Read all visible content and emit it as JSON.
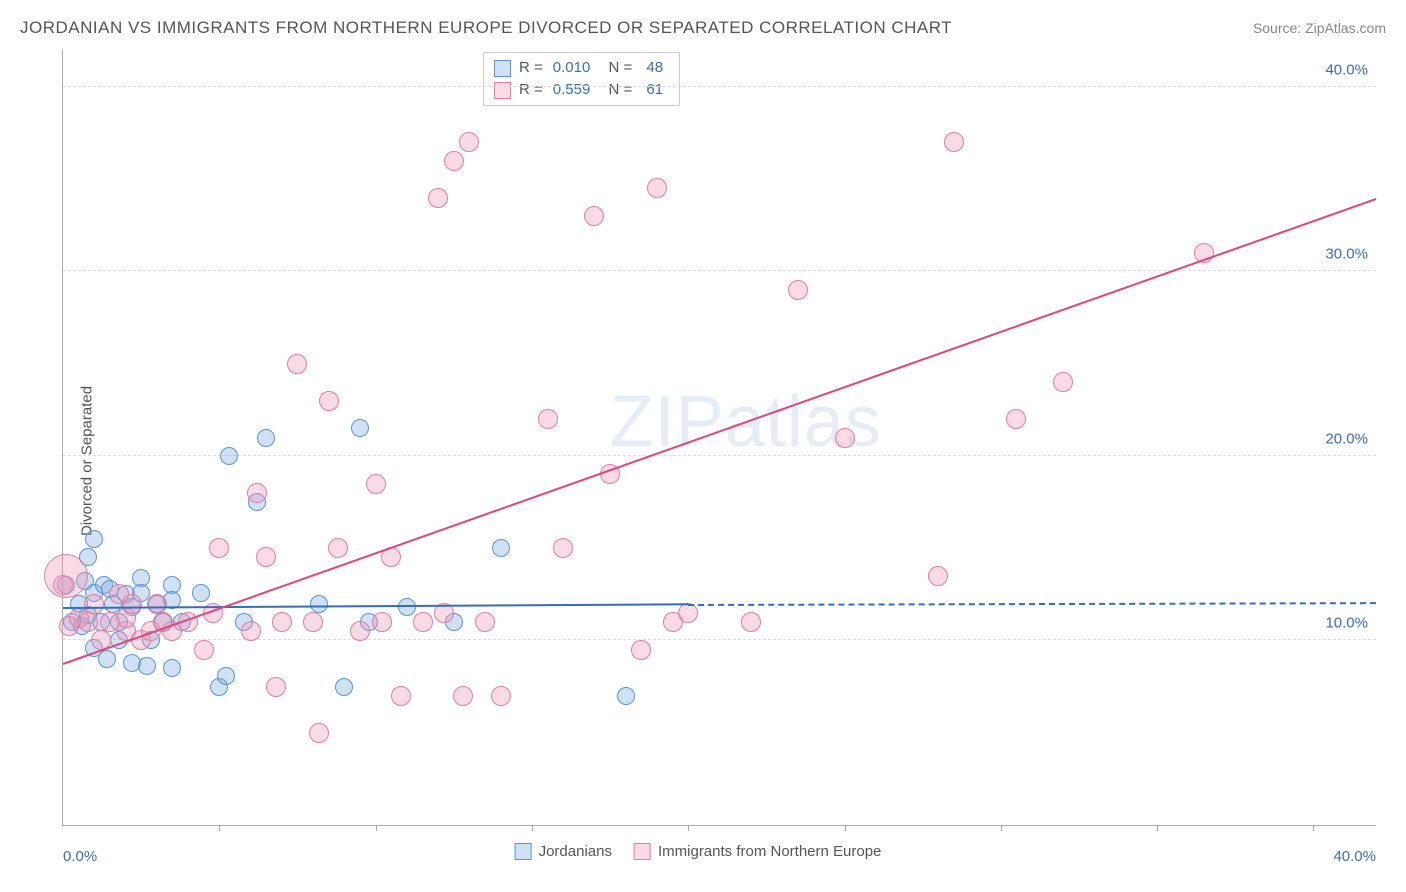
{
  "title": "JORDANIAN VS IMMIGRANTS FROM NORTHERN EUROPE DIVORCED OR SEPARATED CORRELATION CHART",
  "source": "Source: ZipAtlas.com",
  "watermark": "ZIPatlas",
  "ylabel": "Divorced or Separated",
  "chart": {
    "type": "scatter",
    "xlim": [
      0,
      42
    ],
    "ylim": [
      0,
      42
    ],
    "grid_color": "#dddddd",
    "axis_color": "#aaaaaa",
    "y_ticks": [
      10,
      20,
      30,
      40
    ],
    "y_tick_labels": [
      "10.0%",
      "20.0%",
      "30.0%",
      "40.0%"
    ],
    "x_ticks_minor": [
      5,
      10,
      15,
      20,
      25,
      30,
      35,
      40
    ],
    "x_tick_labels": [
      [
        0,
        "0.0%"
      ],
      [
        42,
        "40.0%"
      ]
    ],
    "series": [
      {
        "name": "Jordanians",
        "fill": "rgba(120,170,225,0.35)",
        "stroke": "#5a95d6",
        "marker_r": 9,
        "r_value": "0.010",
        "n_value": "48",
        "trend": {
          "color": "#2f6fc0",
          "x0": 0,
          "y0": 11.8,
          "x1": 20,
          "y1": 12.0,
          "dash_after_x": 20,
          "x2": 42,
          "y2": 12.1
        },
        "points": [
          [
            0.1,
            13.0
          ],
          [
            0.3,
            11.0
          ],
          [
            0.5,
            12.0
          ],
          [
            0.6,
            10.8
          ],
          [
            0.7,
            13.2
          ],
          [
            0.8,
            11.4
          ],
          [
            0.8,
            14.5
          ],
          [
            1.0,
            9.6
          ],
          [
            1.0,
            15.5
          ],
          [
            1.0,
            12.6
          ],
          [
            1.2,
            11.0
          ],
          [
            1.3,
            13.0
          ],
          [
            1.4,
            9.0
          ],
          [
            1.5,
            12.8
          ],
          [
            1.6,
            12.0
          ],
          [
            1.8,
            11.0
          ],
          [
            1.8,
            10.0
          ],
          [
            2.0,
            12.5
          ],
          [
            2.2,
            11.8
          ],
          [
            2.2,
            8.8
          ],
          [
            2.5,
            13.4
          ],
          [
            2.5,
            12.6
          ],
          [
            2.7,
            8.6
          ],
          [
            2.8,
            10.0
          ],
          [
            3.0,
            12.0
          ],
          [
            3.2,
            11.0
          ],
          [
            3.5,
            13.0
          ],
          [
            3.5,
            8.5
          ],
          [
            3.5,
            12.2
          ],
          [
            3.8,
            11.0
          ],
          [
            4.4,
            12.6
          ],
          [
            5.0,
            7.5
          ],
          [
            5.2,
            8.1
          ],
          [
            5.3,
            20.0
          ],
          [
            5.8,
            11.0
          ],
          [
            6.2,
            17.5
          ],
          [
            6.5,
            21.0
          ],
          [
            8.2,
            12.0
          ],
          [
            9.0,
            7.5
          ],
          [
            9.5,
            21.5
          ],
          [
            9.8,
            11.0
          ],
          [
            11.0,
            11.8
          ],
          [
            12.5,
            11.0
          ],
          [
            14.0,
            15.0
          ],
          [
            18.0,
            7.0
          ]
        ]
      },
      {
        "name": "Immigrants from Northern Europe",
        "fill": "rgba(240,150,180,0.35)",
        "stroke": "#e67ba3",
        "marker_r": 10,
        "r_value": "0.559",
        "n_value": "61",
        "trend": {
          "color": "#e2457e",
          "x0": 0,
          "y0": 8.8,
          "x1": 42,
          "y1": 34.0
        },
        "points": [
          [
            0.0,
            13.0
          ],
          [
            0.2,
            10.8
          ],
          [
            0.5,
            11.2
          ],
          [
            0.8,
            11.0
          ],
          [
            1.0,
            12.0
          ],
          [
            1.2,
            10.0
          ],
          [
            1.5,
            11.0
          ],
          [
            1.8,
            12.5
          ],
          [
            2.0,
            10.5
          ],
          [
            2.0,
            11.2
          ],
          [
            2.2,
            12.0
          ],
          [
            2.5,
            10.0
          ],
          [
            2.8,
            10.5
          ],
          [
            3.0,
            12.0
          ],
          [
            3.2,
            11.0
          ],
          [
            3.5,
            10.5
          ],
          [
            4.0,
            11.0
          ],
          [
            4.5,
            9.5
          ],
          [
            4.8,
            11.5
          ],
          [
            5.0,
            15.0
          ],
          [
            6.0,
            10.5
          ],
          [
            6.2,
            18.0
          ],
          [
            6.5,
            14.5
          ],
          [
            6.8,
            7.5
          ],
          [
            7.0,
            11.0
          ],
          [
            7.5,
            25.0
          ],
          [
            8.0,
            11.0
          ],
          [
            8.2,
            5.0
          ],
          [
            8.5,
            23.0
          ],
          [
            8.8,
            15.0
          ],
          [
            9.5,
            10.5
          ],
          [
            10.0,
            18.5
          ],
          [
            10.2,
            11.0
          ],
          [
            10.5,
            14.5
          ],
          [
            10.8,
            7.0
          ],
          [
            11.5,
            11.0
          ],
          [
            12.0,
            34.0
          ],
          [
            12.2,
            11.5
          ],
          [
            12.5,
            36.0
          ],
          [
            12.8,
            7.0
          ],
          [
            13.0,
            37.0
          ],
          [
            13.5,
            11.0
          ],
          [
            14.0,
            7.0
          ],
          [
            15.5,
            22.0
          ],
          [
            16.0,
            15.0
          ],
          [
            17.0,
            33.0
          ],
          [
            17.5,
            19.0
          ],
          [
            18.5,
            9.5
          ],
          [
            19.0,
            34.5
          ],
          [
            19.5,
            11.0
          ],
          [
            20.0,
            11.5
          ],
          [
            22.0,
            11.0
          ],
          [
            23.5,
            29.0
          ],
          [
            25.0,
            21.0
          ],
          [
            28.0,
            13.5
          ],
          [
            28.5,
            37.0
          ],
          [
            30.5,
            22.0
          ],
          [
            32.0,
            24.0
          ],
          [
            36.5,
            31.0
          ]
        ],
        "large_points": [
          {
            "x": 0.1,
            "y": 13.5,
            "r": 22
          }
        ]
      }
    ]
  },
  "stats_labels": {
    "r": "R =",
    "n": "N ="
  },
  "colors": {
    "text_blue": "#3b6db5",
    "text_gray": "#555555"
  }
}
